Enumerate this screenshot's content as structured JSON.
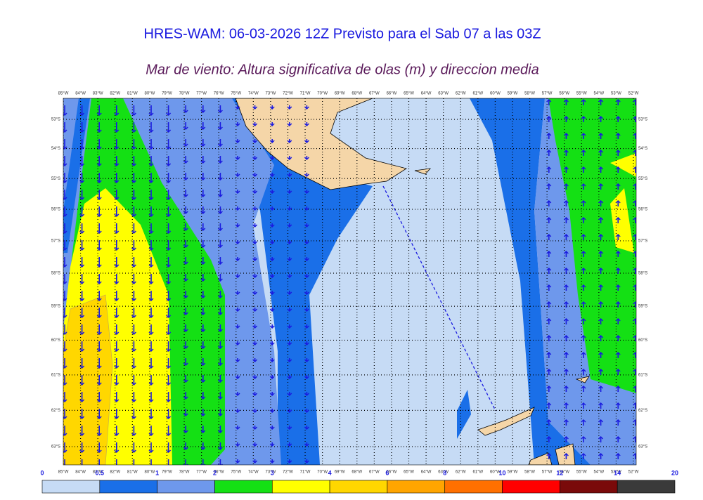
{
  "header": {
    "title": "HRES-WAM: 06-03-2026 12Z Previsto para el Sab 07 a las 03Z",
    "subtitle": "Mar de viento: Altura significativa de olas (m) y direccion media"
  },
  "map": {
    "longitudes": [
      "85°W",
      "84°W",
      "83°W",
      "82°W",
      "81°W",
      "80°W",
      "79°W",
      "78°W",
      "77°W",
      "76°W",
      "75°W",
      "74°W",
      "73°W",
      "72°W",
      "71°W",
      "70°W",
      "69°W",
      "68°W",
      "67°W",
      "66°W",
      "65°W",
      "64°W",
      "63°W",
      "62°W",
      "61°W",
      "60°W",
      "59°W",
      "58°W",
      "57°W",
      "56°W",
      "55°W",
      "54°W",
      "53°W",
      "52°W"
    ],
    "latitudes": [
      "53°S",
      "54°S",
      "55°S",
      "56°S",
      "57°S",
      "58°S",
      "59°S",
      "60°S",
      "61°S",
      "62°S",
      "63°S"
    ]
  },
  "colorbar": {
    "labels": [
      0,
      0.5,
      1,
      2,
      3,
      4,
      6,
      8,
      10,
      12,
      14,
      20
    ],
    "colors": [
      "#c6dbf5",
      "#1a6fe8",
      "#6e98ec",
      "#14e014",
      "#ffff00",
      "#ffd700",
      "#ffa500",
      "#ff7000",
      "#ff0000",
      "#7a0a0a",
      "#3a3a3a"
    ]
  }
}
